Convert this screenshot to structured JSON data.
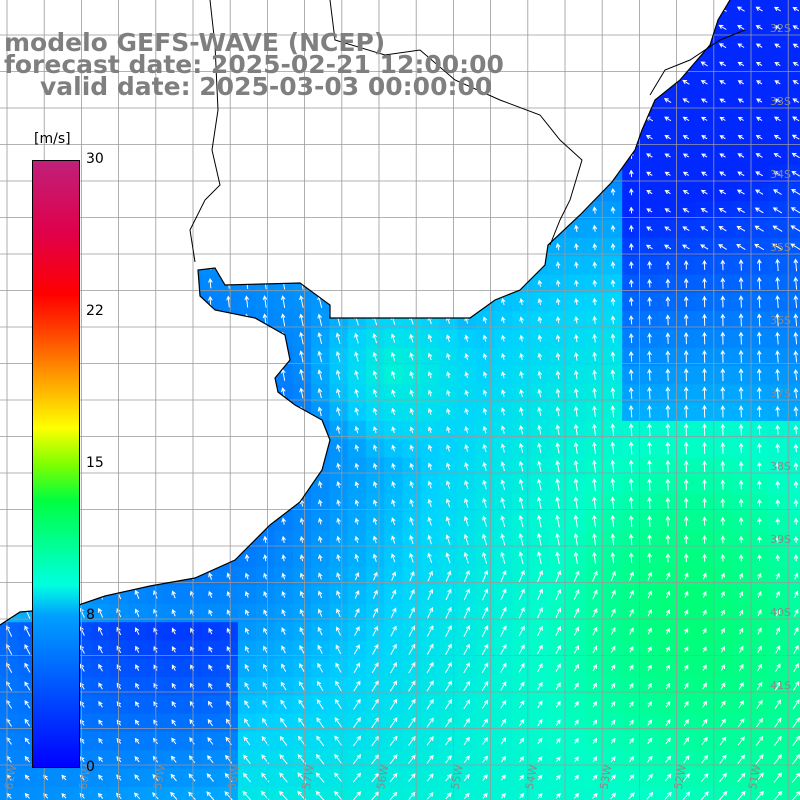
{
  "title": {
    "line1": "modelo GEFS-WAVE (NCEP)",
    "line2": "forecast date: 2025-02-21 12:00:00",
    "line3": "valid date: 2025-03-03 00:00:00"
  },
  "colorbar": {
    "unit": "[m/s]",
    "ticks": [
      "30",
      "22",
      "15",
      "8",
      "0"
    ],
    "tick_values": [
      30,
      22,
      15,
      8,
      0
    ],
    "range": [
      0,
      30
    ]
  },
  "map": {
    "lat_labels": [
      "32S",
      "33S",
      "34S",
      "35S",
      "36S",
      "37S",
      "38S",
      "39S",
      "40S",
      "41S"
    ],
    "lon_labels": [
      "61W",
      "60W",
      "59W",
      "58W",
      "57W",
      "56W",
      "55W",
      "54W",
      "53W",
      "52W",
      "51W"
    ],
    "colors": {
      "land": "#ffffff",
      "coast": "#000000",
      "grid": "#9a9a9a",
      "arrows": "#ffffff"
    }
  }
}
